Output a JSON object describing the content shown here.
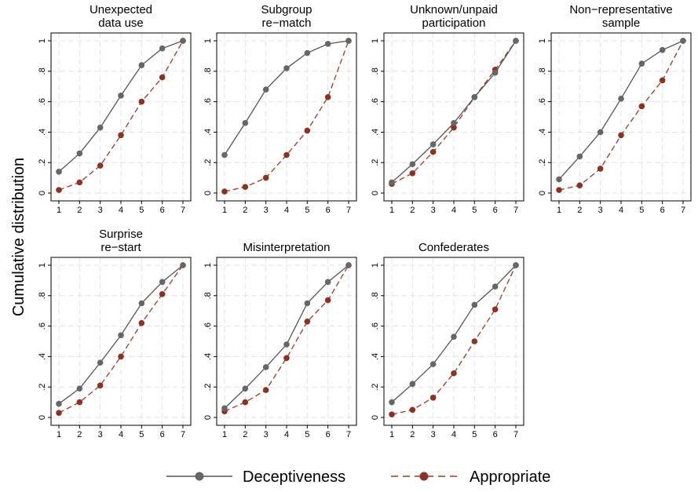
{
  "chart_data": {
    "type": "line",
    "ylabel": "Cumulative distribution",
    "x": [
      1,
      2,
      3,
      4,
      5,
      6,
      7
    ],
    "xlim": [
      1,
      7
    ],
    "ylim": [
      0,
      1
    ],
    "y_ticks": [
      "0",
      ".2",
      ".4",
      ".6",
      ".8",
      "1"
    ],
    "grid": true,
    "legend_position": "bottom",
    "series_styles": [
      {
        "name": "Deceptiveness",
        "color": "#555555",
        "marker_color": "#666666",
        "dash": "solid"
      },
      {
        "name": "Appropriate",
        "color": "#9b3a2a",
        "marker_color": "#8a3324",
        "dash": "dashed"
      }
    ],
    "panels": [
      {
        "title": [
          "Unexpected",
          "data use"
        ],
        "series": [
          {
            "name": "Deceptiveness",
            "values": [
              0.14,
              0.26,
              0.43,
              0.64,
              0.84,
              0.95,
              1.0
            ]
          },
          {
            "name": "Appropriate",
            "values": [
              0.02,
              0.07,
              0.18,
              0.38,
              0.6,
              0.76,
              1.0
            ]
          }
        ]
      },
      {
        "title": [
          "Subgroup",
          "re−match"
        ],
        "series": [
          {
            "name": "Deceptiveness",
            "values": [
              0.25,
              0.46,
              0.68,
              0.82,
              0.92,
              0.98,
              1.0
            ]
          },
          {
            "name": "Appropriate",
            "values": [
              0.01,
              0.04,
              0.1,
              0.25,
              0.41,
              0.63,
              1.0
            ]
          }
        ]
      },
      {
        "title": [
          "Unknown/unpaid",
          "participation"
        ],
        "series": [
          {
            "name": "Deceptiveness",
            "values": [
              0.07,
              0.19,
              0.32,
              0.46,
              0.63,
              0.79,
              1.0
            ]
          },
          {
            "name": "Appropriate",
            "values": [
              0.06,
              0.13,
              0.27,
              0.43,
              0.63,
              0.81,
              1.0
            ]
          }
        ]
      },
      {
        "title": [
          "Non−representative",
          "sample"
        ],
        "series": [
          {
            "name": "Deceptiveness",
            "values": [
              0.09,
              0.24,
              0.4,
              0.62,
              0.85,
              0.94,
              1.0
            ]
          },
          {
            "name": "Appropriate",
            "values": [
              0.02,
              0.05,
              0.16,
              0.38,
              0.57,
              0.74,
              1.0
            ]
          }
        ]
      },
      {
        "title": [
          "Surprise",
          "re−start"
        ],
        "series": [
          {
            "name": "Deceptiveness",
            "values": [
              0.09,
              0.19,
              0.36,
              0.54,
              0.75,
              0.89,
              1.0
            ]
          },
          {
            "name": "Appropriate",
            "values": [
              0.03,
              0.1,
              0.21,
              0.4,
              0.62,
              0.81,
              1.0
            ]
          }
        ]
      },
      {
        "title": [
          "Misinterpretation"
        ],
        "series": [
          {
            "name": "Deceptiveness",
            "values": [
              0.06,
              0.19,
              0.33,
              0.48,
              0.75,
              0.89,
              1.0
            ]
          },
          {
            "name": "Appropriate",
            "values": [
              0.04,
              0.1,
              0.18,
              0.39,
              0.63,
              0.77,
              1.0
            ]
          }
        ]
      },
      {
        "title": [
          "Confederates"
        ],
        "series": [
          {
            "name": "Deceptiveness",
            "values": [
              0.1,
              0.22,
              0.35,
              0.53,
              0.74,
              0.86,
              1.0
            ]
          },
          {
            "name": "Appropriate",
            "values": [
              0.02,
              0.05,
              0.13,
              0.29,
              0.5,
              0.71,
              1.0
            ]
          }
        ]
      }
    ],
    "legend": [
      {
        "label": "Deceptiveness"
      },
      {
        "label": "Appropriate"
      }
    ]
  }
}
